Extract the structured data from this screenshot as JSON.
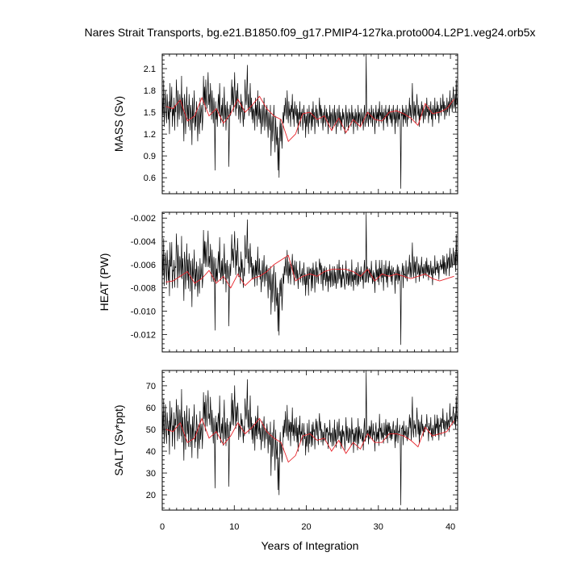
{
  "title": "Nares Strait Transports, bg.e21.B1850.f09_g17.PMIP4-127ka.proto004.L2P1.veg24.orb5x",
  "xlabel": "Years of Integration",
  "colors": {
    "raw": "#000000",
    "smoothed": "#e8242b"
  },
  "chart_data": [
    {
      "type": "line",
      "ylabel": "MASS (Sv)",
      "xlim": [
        0,
        41
      ],
      "ylim": [
        0.38,
        2.3
      ],
      "xticks": [
        0,
        10,
        20,
        30,
        40
      ],
      "yticks": [
        0.6,
        0.9,
        1.2,
        1.5,
        1.8,
        2.1
      ],
      "ytick_labels": [
        "0.6",
        "0.9",
        "1.2",
        "1.5",
        "1.8",
        "2.1"
      ],
      "monthly_samples": 492,
      "series": [
        {
          "role": "monthly",
          "values": "see raw_values"
        },
        {
          "role": "annual-mean"
        }
      ],
      "annual_x": [
        0.5,
        1.5,
        2.5,
        3.5,
        4.5,
        5.5,
        6.5,
        7.5,
        8.5,
        9.5,
        10.5,
        11.5,
        12.5,
        13.5,
        14.5,
        15.5,
        16.5,
        17.5,
        18.5,
        19.5,
        20.5,
        21.5,
        22.5,
        23.5,
        24.5,
        25.5,
        26.5,
        27.5,
        28.5,
        29.5,
        30.5,
        31.5,
        32.5,
        33.5,
        34.5,
        35.5,
        36.5,
        37.5,
        38.5,
        39.5,
        40.5
      ],
      "annual_y": [
        1.58,
        1.55,
        1.67,
        1.38,
        1.45,
        1.7,
        1.45,
        1.55,
        1.35,
        1.48,
        1.68,
        1.5,
        1.6,
        1.72,
        1.55,
        1.45,
        1.4,
        1.1,
        1.2,
        1.48,
        1.5,
        1.4,
        1.45,
        1.25,
        1.42,
        1.22,
        1.4,
        1.3,
        1.5,
        1.4,
        1.38,
        1.5,
        1.52,
        1.48,
        1.42,
        1.32,
        1.62,
        1.48,
        1.5,
        1.55,
        1.68
      ],
      "raw_values": [
        1.7,
        1.45,
        1.95,
        1.3,
        1.6,
        1.8,
        1.5,
        1.35,
        1.75,
        1.55,
        1.4,
        1.65,
        1.2,
        1.9,
        1.5,
        1.6,
        1.85,
        1.3,
        1.55,
        1.45,
        1.7,
        1.25,
        1.6,
        1.5,
        1.95,
        1.65,
        1.3,
        1.8,
        1.55,
        1.4,
        1.75,
        1.6,
        1.45,
        2.0,
        1.35,
        1.7,
        1.5,
        1.1,
        1.75,
        1.6,
        1.2,
        1.5,
        1.85,
        1.4,
        1.6,
        1.3,
        1.75,
        1.55,
        1.25,
        1.6,
        1.45,
        1.05,
        1.7,
        1.35,
        1.55,
        1.8,
        1.25,
        1.5,
        1.3,
        1.65,
        1.45,
        1.1,
        1.55,
        1.4,
        1.2,
        1.7,
        1.35,
        1.5,
        1.6,
        1.25,
        1.45,
        2.0,
        1.6,
        1.85,
        1.5,
        1.95,
        1.7,
        1.55,
        1.8,
        2.05,
        1.6,
        1.75,
        1.5,
        1.9,
        1.65,
        1.4,
        1.8,
        1.55,
        1.35,
        1.7,
        1.5,
        0.7,
        1.65,
        1.4,
        1.55,
        1.3,
        1.6,
        1.75,
        1.45,
        1.9,
        1.5,
        1.35,
        1.6,
        1.45,
        1.7,
        1.3,
        1.55,
        1.85,
        1.4,
        1.6,
        1.25,
        1.5,
        1.65,
        1.4,
        1.55,
        0.75,
        1.35,
        1.6,
        1.45,
        1.7,
        1.95,
        1.6,
        1.85,
        1.5,
        1.75,
        2.05,
        1.65,
        1.45,
        1.8,
        1.55,
        1.9,
        1.7,
        1.4,
        1.6,
        1.55,
        1.35,
        1.75,
        1.5,
        1.65,
        1.45,
        1.3,
        1.55,
        1.4,
        1.95,
        1.7,
        1.6,
        1.8,
        2.15,
        1.55,
        1.75,
        1.45,
        1.65,
        1.9,
        1.5,
        1.7,
        1.4,
        1.6,
        1.35,
        1.55,
        1.5,
        1.25,
        1.7,
        1.45,
        1.6,
        1.3,
        1.8,
        1.5,
        1.4,
        1.65,
        1.35,
        1.55,
        1.2,
        1.45,
        1.6,
        1.3,
        1.5,
        1.7,
        1.25,
        1.45,
        1.55,
        1.3,
        1.6,
        1.4,
        1.15,
        1.5,
        1.35,
        1.25,
        1.6,
        0.9,
        1.3,
        1.45,
        1.1,
        1.35,
        1.6,
        1.25,
        0.95,
        1.45,
        1.2,
        1.05,
        1.3,
        0.7,
        1.15,
        0.6,
        1.25,
        1.4,
        1.1,
        1.35,
        1.0,
        1.2,
        1.5,
        1.35,
        1.6,
        1.45,
        1.7,
        1.55,
        1.4,
        1.8,
        1.5,
        1.35,
        1.65,
        1.45,
        1.55,
        1.3,
        1.6,
        1.5,
        1.75,
        1.4,
        1.55,
        1.3,
        1.65,
        1.5,
        1.45,
        1.6,
        1.35,
        1.55,
        1.2,
        1.5,
        1.4,
        1.65,
        1.3,
        1.5,
        1.45,
        1.55,
        1.25,
        1.4,
        1.6,
        1.35,
        1.5,
        1.15,
        1.45,
        1.3,
        1.55,
        1.4,
        1.2,
        1.6,
        1.35,
        1.5,
        1.45,
        1.25,
        1.55,
        1.3,
        1.65,
        1.4,
        1.5,
        1.2,
        1.45,
        1.6,
        1.35,
        1.55,
        1.4,
        1.3,
        1.5,
        1.7,
        1.45,
        1.6,
        1.35,
        1.55,
        1.4,
        1.25,
        1.5,
        1.35,
        1.6,
        1.45,
        1.3,
        1.55,
        1.4,
        1.5,
        1.2,
        1.45,
        1.35,
        1.6,
        1.3,
        1.5,
        1.45,
        1.25,
        1.55,
        1.4,
        1.3,
        1.6,
        1.35,
        1.5,
        1.2,
        1.45,
        1.55,
        1.3,
        1.4,
        1.6,
        1.35,
        1.5,
        1.25,
        1.45,
        1.3,
        1.55,
        1.4,
        1.5,
        1.35,
        1.2,
        1.45,
        1.6,
        1.3,
        1.5,
        1.4,
        1.25,
        1.55,
        1.35,
        1.5,
        1.45,
        1.3,
        1.6,
        1.4,
        1.5,
        1.2,
        1.45,
        1.35,
        1.55,
        1.3,
        1.5,
        1.4,
        1.25,
        1.6,
        1.35,
        1.5,
        1.45,
        1.3,
        1.55,
        1.4,
        1.35,
        1.5,
        1.25,
        1.45,
        1.6,
        1.3,
        1.4,
        2.3,
        1.35,
        1.5,
        1.45,
        1.3,
        1.55,
        1.4,
        1.5,
        1.35,
        1.6,
        1.45,
        1.3,
        1.55,
        1.4,
        1.5,
        1.2,
        1.45,
        1.6,
        1.35,
        1.5,
        1.4,
        1.55,
        1.3,
        1.65,
        1.45,
        1.5,
        1.35,
        1.6,
        1.4,
        1.5,
        1.25,
        1.55,
        1.4,
        1.45,
        1.6,
        1.35,
        1.5,
        1.3,
        1.55,
        1.45,
        1.6,
        1.4,
        1.5,
        1.35,
        1.55,
        1.3,
        1.45,
        1.6,
        1.4,
        1.5,
        1.2,
        1.55,
        1.35,
        1.45,
        1.6,
        1.3,
        1.5,
        1.4,
        1.55,
        1.35,
        0.45,
        1.5,
        1.45,
        1.6,
        1.3,
        1.55,
        1.4,
        1.5,
        1.35,
        1.6,
        1.45,
        1.3,
        1.55,
        1.4,
        1.5,
        1.7,
        1.45,
        1.6,
        1.35,
        1.55,
        1.9,
        1.5,
        1.4,
        1.65,
        1.45,
        1.6,
        1.35,
        1.55,
        1.75,
        1.5,
        1.45,
        1.6,
        1.3,
        1.55,
        1.4,
        1.5,
        1.65,
        1.45,
        1.6,
        1.35,
        1.55,
        1.5,
        1.4,
        1.6,
        1.45,
        1.7,
        1.5,
        1.55,
        1.35,
        1.6,
        1.45,
        1.5,
        1.65,
        1.4,
        1.55,
        1.3,
        1.6,
        1.5,
        1.45,
        1.7,
        1.4,
        1.55,
        1.5,
        1.65,
        1.45,
        1.6,
        1.35,
        1.55,
        1.5,
        1.7,
        1.45,
        1.6,
        1.55,
        1.75,
        1.5,
        1.65,
        1.4,
        1.6,
        1.55,
        1.45,
        1.7,
        1.5,
        1.6,
        1.65,
        1.45,
        1.8,
        1.55,
        1.6,
        1.7,
        1.5,
        1.65,
        1.85,
        1.55,
        1.6,
        1.75,
        1.5,
        1.95,
        1.6,
        1.7
      ]
    },
    {
      "type": "line",
      "ylabel": "HEAT (PW)",
      "xlim": [
        0,
        41
      ],
      "ylim": [
        -0.0135,
        -0.0015
      ],
      "xticks": [
        0,
        10,
        20,
        30,
        40
      ],
      "yticks": [
        -0.012,
        -0.01,
        -0.008,
        -0.006,
        -0.004,
        -0.002
      ],
      "ytick_labels": [
        "-0.012",
        "-0.010",
        "-0.008",
        "-0.006",
        "-0.004",
        "-0.002"
      ],
      "annual_x": [
        0.5,
        1.5,
        2.5,
        3.5,
        4.5,
        5.5,
        6.5,
        7.5,
        8.5,
        9.5,
        10.5,
        11.5,
        12.5,
        13.5,
        14.5,
        15.5,
        16.5,
        17.5,
        18.5,
        19.5,
        20.5,
        21.5,
        22.5,
        23.5,
        24.5,
        25.5,
        26.5,
        27.5,
        28.5,
        29.5,
        30.5,
        31.5,
        32.5,
        33.5,
        34.5,
        35.5,
        36.5,
        37.5,
        38.5,
        39.5,
        40.5
      ],
      "annual_y": [
        -0.0075,
        -0.0074,
        -0.007,
        -0.0066,
        -0.0076,
        -0.0072,
        -0.0065,
        -0.0076,
        -0.007,
        -0.008,
        -0.0068,
        -0.0078,
        -0.0072,
        -0.007,
        -0.0066,
        -0.006,
        -0.0056,
        -0.0052,
        -0.0074,
        -0.007,
        -0.0068,
        -0.007,
        -0.0066,
        -0.0064,
        -0.0064,
        -0.0064,
        -0.0066,
        -0.007,
        -0.0064,
        -0.0074,
        -0.0068,
        -0.007,
        -0.0068,
        -0.007,
        -0.0072,
        -0.007,
        -0.0068,
        -0.0072,
        -0.0074,
        -0.0072,
        -0.007
      ]
    },
    {
      "type": "line",
      "ylabel": "SALT (Sv*ppt)",
      "xlim": [
        0,
        41
      ],
      "ylim": [
        13,
        77
      ],
      "xticks": [
        0,
        10,
        20,
        30,
        40
      ],
      "xtick_labels": [
        "0",
        "10",
        "20",
        "30",
        "40"
      ],
      "yticks": [
        20,
        30,
        40,
        50,
        60,
        70
      ],
      "ytick_labels": [
        "20",
        "30",
        "40",
        "50",
        "60",
        "70"
      ],
      "annual_x": [
        0.5,
        1.5,
        2.5,
        3.5,
        4.5,
        5.5,
        6.5,
        7.5,
        8.5,
        9.5,
        10.5,
        11.5,
        12.5,
        13.5,
        14.5,
        15.5,
        16.5,
        17.5,
        18.5,
        19.5,
        20.5,
        21.5,
        22.5,
        23.5,
        24.5,
        25.5,
        26.5,
        27.5,
        28.5,
        29.5,
        30.5,
        31.5,
        32.5,
        33.5,
        34.5,
        35.5,
        36.5,
        37.5,
        38.5,
        39.5,
        40.5
      ],
      "annual_y": [
        50,
        49,
        53,
        44,
        46,
        55,
        46,
        49,
        43,
        47,
        53,
        48,
        51,
        55,
        49,
        46,
        44,
        35,
        38,
        47,
        48,
        45,
        46,
        40,
        45,
        39,
        44,
        41,
        48,
        44,
        44,
        48,
        48,
        47,
        45,
        42,
        51,
        47,
        48,
        49,
        54
      ]
    }
  ]
}
